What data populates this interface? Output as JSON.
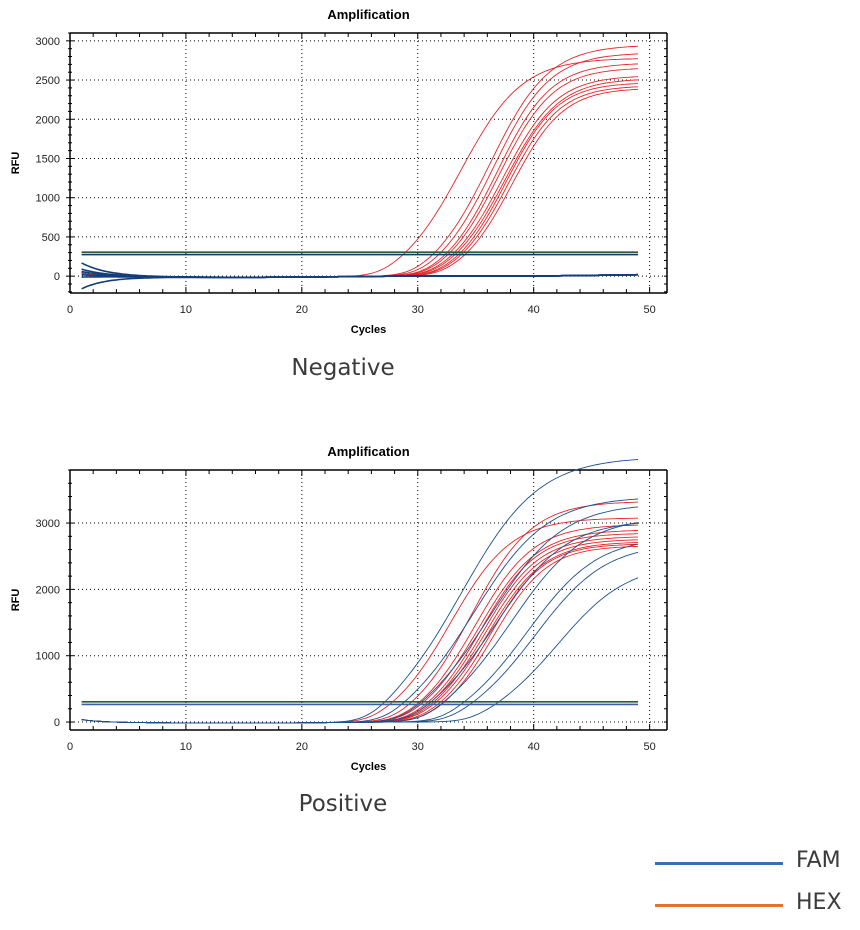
{
  "legend": {
    "items": [
      {
        "label": "FAM",
        "color": "#3a6cb0"
      },
      {
        "label": "HEX",
        "color": "#e07232"
      }
    ]
  },
  "chart_data": [
    {
      "type": "line",
      "panel_label": "Negative",
      "title": "Amplification",
      "xlabel": "Cycles",
      "ylabel": "RFU",
      "xlim": [
        0,
        51.5
      ],
      "ylim": [
        -215,
        3100
      ],
      "xticks": [
        0,
        10,
        20,
        30,
        40,
        50
      ],
      "yticks": [
        0,
        500,
        1000,
        1500,
        2000,
        2500,
        3000
      ],
      "grid": true,
      "thresholds": [
        {
          "value": 305,
          "color": "#2f5a3a"
        },
        {
          "value": 275,
          "color": "#0e3a6e"
        }
      ],
      "series": [
        {
          "name": "HEX",
          "color": "#e2262a",
          "curves": [
            {
              "ct": 31.0,
              "plateau": 2780,
              "slope": 2.6
            },
            {
              "ct": 33.6,
              "plateau": 2950,
              "slope": 2.5
            },
            {
              "ct": 34.0,
              "plateau": 2850,
              "slope": 2.4
            },
            {
              "ct": 34.4,
              "plateau": 2720,
              "slope": 2.3
            },
            {
              "ct": 34.6,
              "plateau": 2660,
              "slope": 2.3
            },
            {
              "ct": 34.9,
              "plateau": 2560,
              "slope": 2.3
            },
            {
              "ct": 35.1,
              "plateau": 2520,
              "slope": 2.3
            },
            {
              "ct": 35.3,
              "plateau": 2470,
              "slope": 2.2
            },
            {
              "ct": 35.5,
              "plateau": 2430,
              "slope": 2.2
            },
            {
              "ct": 35.8,
              "plateau": 2400,
              "slope": 2.2
            }
          ]
        },
        {
          "name": "FAM",
          "color": "#133d7a",
          "curves": [
            {
              "ct": null,
              "plateau": 0,
              "start": 170
            },
            {
              "ct": null,
              "plateau": 0,
              "start": 90
            },
            {
              "ct": null,
              "plateau": 0,
              "start": 60
            },
            {
              "ct": null,
              "plateau": 0,
              "start": 20
            },
            {
              "ct": null,
              "plateau": 0,
              "start": -10
            },
            {
              "ct": null,
              "plateau": 0,
              "start": -160
            }
          ]
        }
      ]
    },
    {
      "type": "line",
      "panel_label": "Positive",
      "title": "Amplification",
      "xlabel": "Cycles",
      "ylabel": "RFU",
      "xlim": [
        0,
        51.5
      ],
      "ylim": [
        -120,
        3800
      ],
      "xticks": [
        0,
        10,
        20,
        30,
        40,
        50
      ],
      "yticks": [
        0,
        1000,
        2000,
        3000
      ],
      "grid": true,
      "thresholds": [
        {
          "value": 305,
          "color": "#2f5a3a"
        },
        {
          "value": 265,
          "color": "#3a5fa8"
        }
      ],
      "series": [
        {
          "name": "HEX",
          "color": "#e2262a",
          "curves": [
            {
              "ct": 30.1,
              "plateau": 3080,
              "slope": 2.6
            },
            {
              "ct": 31.9,
              "plateau": 3330,
              "slope": 2.6
            },
            {
              "ct": 32.3,
              "plateau": 2980,
              "slope": 2.5
            },
            {
              "ct": 32.6,
              "plateau": 2900,
              "slope": 2.5
            },
            {
              "ct": 32.9,
              "plateau": 2850,
              "slope": 2.4
            },
            {
              "ct": 33.1,
              "plateau": 2800,
              "slope": 2.4
            },
            {
              "ct": 33.3,
              "plateau": 2760,
              "slope": 2.4
            },
            {
              "ct": 33.5,
              "plateau": 2720,
              "slope": 2.4
            },
            {
              "ct": 33.8,
              "plateau": 2690,
              "slope": 2.3
            },
            {
              "ct": 34.1,
              "plateau": 2660,
              "slope": 2.3
            }
          ]
        },
        {
          "name": "FAM",
          "color": "#1d4f8f",
          "curves": [
            {
              "ct": 30.3,
              "plateau": 4000,
              "slope": 3.3
            },
            {
              "ct": 31.6,
              "plateau": 3400,
              "slope": 3.1
            },
            {
              "ct": 33.0,
              "plateau": 3300,
              "slope": 3.1
            },
            {
              "ct": 33.6,
              "plateau": 3050,
              "slope": 3.0
            },
            {
              "ct": 34.8,
              "plateau": 3100,
              "slope": 3.1
            },
            {
              "ct": 36.3,
              "plateau": 2800,
              "slope": 3.0
            },
            {
              "ct": 37.0,
              "plateau": 2700,
              "slope": 3.0
            },
            {
              "ct": 38.9,
              "plateau": 2400,
              "slope": 3.0
            }
          ]
        }
      ]
    }
  ]
}
